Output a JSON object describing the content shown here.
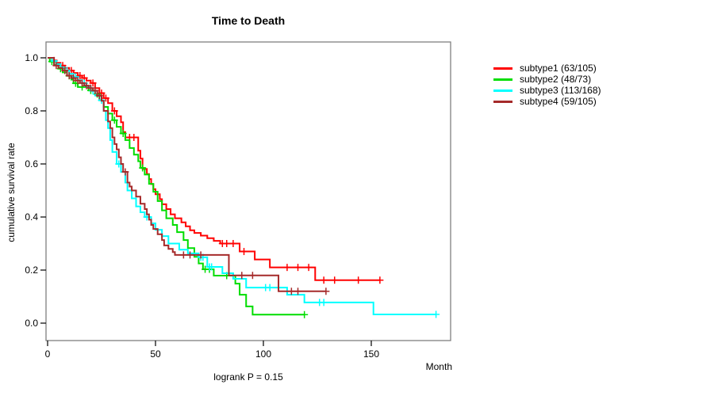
{
  "chart_data": {
    "type": "line",
    "variant": "kaplan-meier-step",
    "title": "Time to Death",
    "xlabel": "Month",
    "ylabel": "cumulative survival rate",
    "annotation": "logrank P = 0.15",
    "xlim": [
      0,
      187
    ],
    "ylim": [
      0,
      1.0
    ],
    "grid": false,
    "legend_position": "right-outside",
    "xticks": [
      {
        "value": 0,
        "label": "0"
      },
      {
        "value": 50,
        "label": "50"
      },
      {
        "value": 100,
        "label": "100"
      },
      {
        "value": 150,
        "label": "150"
      }
    ],
    "yticks": [
      {
        "value": 0.0,
        "label": "0.0"
      },
      {
        "value": 0.2,
        "label": "0.2"
      },
      {
        "value": 0.4,
        "label": "0.4"
      },
      {
        "value": 0.6,
        "label": "0.6"
      },
      {
        "value": 0.8,
        "label": "0.8"
      },
      {
        "value": 1.0,
        "label": "1.0"
      }
    ],
    "series": [
      {
        "name": "subtype1 (63/105)",
        "color": "#ff0000",
        "steps": [
          [
            0,
            1.0
          ],
          [
            2,
            0.99
          ],
          [
            4,
            0.981
          ],
          [
            6,
            0.971
          ],
          [
            8,
            0.962
          ],
          [
            10,
            0.952
          ],
          [
            12,
            0.943
          ],
          [
            14,
            0.933
          ],
          [
            16,
            0.924
          ],
          [
            18,
            0.914
          ],
          [
            20,
            0.905
          ],
          [
            22,
            0.886
          ],
          [
            24,
            0.867
          ],
          [
            26,
            0.848
          ],
          [
            28,
            0.829
          ],
          [
            30,
            0.8
          ],
          [
            32,
            0.78
          ],
          [
            34,
            0.757
          ],
          [
            35,
            0.72
          ],
          [
            36,
            0.7
          ],
          [
            42,
            0.65
          ],
          [
            43,
            0.62
          ],
          [
            44,
            0.581
          ],
          [
            46,
            0.562
          ],
          [
            47,
            0.543
          ],
          [
            48,
            0.524
          ],
          [
            49,
            0.505
          ],
          [
            50,
            0.486
          ],
          [
            52,
            0.467
          ],
          [
            53,
            0.448
          ],
          [
            55,
            0.43
          ],
          [
            57,
            0.41
          ],
          [
            59,
            0.395
          ],
          [
            62,
            0.38
          ],
          [
            64,
            0.365
          ],
          [
            66,
            0.35
          ],
          [
            68,
            0.34
          ],
          [
            71,
            0.33
          ],
          [
            74,
            0.32
          ],
          [
            77,
            0.31
          ],
          [
            80,
            0.3
          ],
          [
            89,
            0.27
          ],
          [
            96,
            0.24
          ],
          [
            103,
            0.21
          ],
          [
            124,
            0.162
          ],
          [
            154,
            0.162
          ]
        ],
        "censors": [
          [
            3,
            0.99
          ],
          [
            7,
            0.971
          ],
          [
            11,
            0.952
          ],
          [
            15,
            0.933
          ],
          [
            17,
            0.924
          ],
          [
            21,
            0.905
          ],
          [
            25,
            0.867
          ],
          [
            27,
            0.848
          ],
          [
            31,
            0.8
          ],
          [
            38,
            0.7
          ],
          [
            40,
            0.7
          ],
          [
            81,
            0.3
          ],
          [
            83,
            0.3
          ],
          [
            86,
            0.3
          ],
          [
            91,
            0.27
          ],
          [
            111,
            0.21
          ],
          [
            116,
            0.21
          ],
          [
            121,
            0.21
          ],
          [
            128,
            0.162
          ],
          [
            133,
            0.162
          ],
          [
            144,
            0.162
          ],
          [
            154,
            0.162
          ]
        ]
      },
      {
        "name": "subtype2 (48/73)",
        "color": "#00dd00",
        "steps": [
          [
            0,
            1.0
          ],
          [
            1,
            0.986
          ],
          [
            3,
            0.973
          ],
          [
            5,
            0.959
          ],
          [
            7,
            0.945
          ],
          [
            9,
            0.932
          ],
          [
            11,
            0.918
          ],
          [
            12,
            0.904
          ],
          [
            14,
            0.89
          ],
          [
            19,
            0.877
          ],
          [
            22,
            0.863
          ],
          [
            24,
            0.84
          ],
          [
            26,
            0.815
          ],
          [
            28,
            0.79
          ],
          [
            30,
            0.765
          ],
          [
            32,
            0.74
          ],
          [
            34,
            0.715
          ],
          [
            36,
            0.69
          ],
          [
            38,
            0.66
          ],
          [
            40,
            0.635
          ],
          [
            42,
            0.61
          ],
          [
            43,
            0.585
          ],
          [
            45,
            0.56
          ],
          [
            47,
            0.525
          ],
          [
            49,
            0.495
          ],
          [
            51,
            0.46
          ],
          [
            53,
            0.425
          ],
          [
            55,
            0.395
          ],
          [
            58,
            0.37
          ],
          [
            60,
            0.343
          ],
          [
            63,
            0.313
          ],
          [
            65,
            0.283
          ],
          [
            68,
            0.25
          ],
          [
            70,
            0.225
          ],
          [
            72,
            0.203
          ],
          [
            77,
            0.179
          ],
          [
            87,
            0.149
          ],
          [
            89,
            0.107
          ],
          [
            92,
            0.063
          ],
          [
            95,
            0.032
          ],
          [
            119,
            0.032
          ]
        ],
        "censors": [
          [
            2,
            0.986
          ],
          [
            6,
            0.959
          ],
          [
            10,
            0.932
          ],
          [
            13,
            0.904
          ],
          [
            16,
            0.89
          ],
          [
            20,
            0.877
          ],
          [
            23,
            0.863
          ],
          [
            31,
            0.765
          ],
          [
            35,
            0.715
          ],
          [
            44,
            0.585
          ],
          [
            73,
            0.203
          ],
          [
            75,
            0.203
          ],
          [
            83,
            0.179
          ],
          [
            119,
            0.032
          ]
        ]
      },
      {
        "name": "subtype3 (113/168)",
        "color": "#00ffff",
        "steps": [
          [
            0,
            1.0
          ],
          [
            2,
            0.988
          ],
          [
            4,
            0.976
          ],
          [
            6,
            0.964
          ],
          [
            8,
            0.952
          ],
          [
            10,
            0.94
          ],
          [
            12,
            0.928
          ],
          [
            14,
            0.916
          ],
          [
            16,
            0.904
          ],
          [
            18,
            0.892
          ],
          [
            20,
            0.875
          ],
          [
            22,
            0.858
          ],
          [
            24,
            0.84
          ],
          [
            26,
            0.8
          ],
          [
            27,
            0.765
          ],
          [
            28,
            0.735
          ],
          [
            29,
            0.69
          ],
          [
            30,
            0.645
          ],
          [
            32,
            0.6
          ],
          [
            34,
            0.57
          ],
          [
            36,
            0.53
          ],
          [
            37,
            0.5
          ],
          [
            39,
            0.47
          ],
          [
            41,
            0.44
          ],
          [
            43,
            0.418
          ],
          [
            45,
            0.4
          ],
          [
            48,
            0.376
          ],
          [
            50,
            0.352
          ],
          [
            53,
            0.328
          ],
          [
            56,
            0.3
          ],
          [
            61,
            0.277
          ],
          [
            65,
            0.263
          ],
          [
            70,
            0.248
          ],
          [
            74,
            0.212
          ],
          [
            81,
            0.188
          ],
          [
            86,
            0.167
          ],
          [
            92,
            0.134
          ],
          [
            111,
            0.107
          ],
          [
            119,
            0.078
          ],
          [
            151,
            0.033
          ],
          [
            180,
            0.033
          ]
        ],
        "censors": [
          [
            3,
            0.988
          ],
          [
            9,
            0.952
          ],
          [
            13,
            0.928
          ],
          [
            17,
            0.904
          ],
          [
            21,
            0.875
          ],
          [
            25,
            0.84
          ],
          [
            33,
            0.6
          ],
          [
            46,
            0.4
          ],
          [
            71,
            0.248
          ],
          [
            72,
            0.248
          ],
          [
            75,
            0.212
          ],
          [
            76,
            0.212
          ],
          [
            101,
            0.134
          ],
          [
            103,
            0.134
          ],
          [
            126,
            0.078
          ],
          [
            128,
            0.078
          ],
          [
            180,
            0.033
          ]
        ]
      },
      {
        "name": "subtype4 (59/105)",
        "color": "#a52a2a",
        "steps": [
          [
            0,
            1.0
          ],
          [
            3,
            0.971
          ],
          [
            5,
            0.962
          ],
          [
            7,
            0.952
          ],
          [
            9,
            0.933
          ],
          [
            11,
            0.924
          ],
          [
            13,
            0.914
          ],
          [
            15,
            0.905
          ],
          [
            17,
            0.895
          ],
          [
            19,
            0.886
          ],
          [
            21,
            0.876
          ],
          [
            23,
            0.857
          ],
          [
            25,
            0.838
          ],
          [
            26,
            0.8
          ],
          [
            28,
            0.76
          ],
          [
            29,
            0.735
          ],
          [
            30,
            0.7
          ],
          [
            31,
            0.675
          ],
          [
            32,
            0.655
          ],
          [
            33,
            0.625
          ],
          [
            34,
            0.6
          ],
          [
            35,
            0.57
          ],
          [
            37,
            0.53
          ],
          [
            38,
            0.515
          ],
          [
            39,
            0.5
          ],
          [
            41,
            0.477
          ],
          [
            43,
            0.45
          ],
          [
            45,
            0.43
          ],
          [
            46,
            0.41
          ],
          [
            47,
            0.39
          ],
          [
            48,
            0.37
          ],
          [
            49,
            0.355
          ],
          [
            51,
            0.335
          ],
          [
            53,
            0.313
          ],
          [
            54,
            0.293
          ],
          [
            56,
            0.28
          ],
          [
            58,
            0.268
          ],
          [
            59,
            0.257
          ],
          [
            84,
            0.18
          ],
          [
            107,
            0.12
          ],
          [
            129,
            0.12
          ]
        ],
        "censors": [
          [
            4,
            0.971
          ],
          [
            8,
            0.952
          ],
          [
            10,
            0.933
          ],
          [
            12,
            0.924
          ],
          [
            14,
            0.914
          ],
          [
            16,
            0.905
          ],
          [
            18,
            0.895
          ],
          [
            20,
            0.886
          ],
          [
            22,
            0.876
          ],
          [
            24,
            0.857
          ],
          [
            36,
            0.57
          ],
          [
            63,
            0.257
          ],
          [
            66,
            0.257
          ],
          [
            71,
            0.257
          ],
          [
            90,
            0.18
          ],
          [
            95,
            0.18
          ],
          [
            113,
            0.12
          ],
          [
            116,
            0.12
          ],
          [
            129,
            0.12
          ]
        ]
      }
    ]
  }
}
